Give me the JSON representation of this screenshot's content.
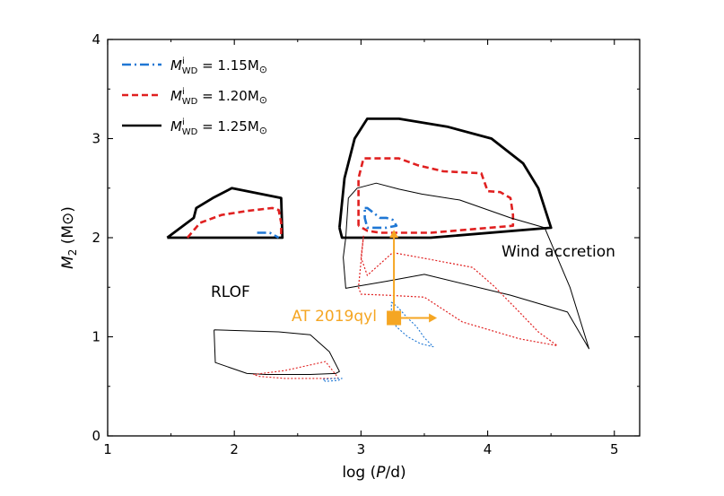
{
  "chart_data": {
    "type": "line",
    "xlabel": "log (P/d)",
    "ylabel": "M2 (M⊙)",
    "xlim": [
      1,
      5.2
    ],
    "ylim": [
      0,
      4
    ],
    "xticks": [
      "1",
      "2",
      "3",
      "4",
      "5"
    ],
    "yticks": [
      "0",
      "1",
      "2",
      "3",
      "4"
    ],
    "legend_position": "top-left",
    "legend": [
      {
        "label": "M_WD^i = 1.15M⊙",
        "color": "#1f77d4",
        "style": "dashdot"
      },
      {
        "label": "M_WD^i = 1.20M⊙",
        "color": "#e02020",
        "style": "dashed"
      },
      {
        "label": "M_WD^i = 1.25M⊙",
        "color": "#000000",
        "style": "solid"
      }
    ],
    "annotations": [
      "RLOF",
      "Wind accretion"
    ],
    "point": {
      "label": "AT 2019qyl",
      "x": 3.26,
      "y": 1.19,
      "color": "#f5a623",
      "arrow_up_to": 2.08,
      "arrow_right_to": 3.6
    },
    "series": [
      {
        "color": "#000000",
        "style": "solid",
        "width": 2.8,
        "points": [
          [
            1.47,
            2.0
          ],
          [
            1.73,
            2.0
          ],
          [
            2.38,
            2.0
          ],
          [
            2.37,
            2.4
          ],
          [
            1.98,
            2.5
          ],
          [
            1.83,
            2.4
          ],
          [
            1.7,
            2.3
          ],
          [
            1.68,
            2.2
          ],
          [
            1.47,
            2.0
          ]
        ]
      },
      {
        "color": "#e02020",
        "style": "dashed",
        "width": 2.6,
        "points": [
          [
            1.63,
            2.0
          ],
          [
            1.73,
            2.15
          ],
          [
            1.9,
            2.23
          ],
          [
            2.1,
            2.27
          ],
          [
            2.3,
            2.3
          ],
          [
            2.35,
            2.28
          ],
          [
            2.37,
            2.15
          ],
          [
            2.37,
            2.0
          ]
        ]
      },
      {
        "color": "#1f77d4",
        "style": "dashdot",
        "width": 2.6,
        "points": [
          [
            2.18,
            2.05
          ],
          [
            2.28,
            2.05
          ],
          [
            2.35,
            2.0
          ]
        ]
      },
      {
        "color": "#000000",
        "style": "solid",
        "width": 2.8,
        "points": [
          [
            2.83,
            2.1
          ],
          [
            2.87,
            2.6
          ],
          [
            2.95,
            3.0
          ],
          [
            3.05,
            3.2
          ],
          [
            3.3,
            3.2
          ],
          [
            3.68,
            3.12
          ],
          [
            4.03,
            3.0
          ],
          [
            4.28,
            2.75
          ],
          [
            4.4,
            2.5
          ],
          [
            4.5,
            2.1
          ],
          [
            3.55,
            2.0
          ],
          [
            2.85,
            2.0
          ],
          [
            2.83,
            2.1
          ]
        ]
      },
      {
        "color": "#e02020",
        "style": "dashed",
        "width": 2.6,
        "points": [
          [
            2.98,
            2.12
          ],
          [
            2.98,
            2.6
          ],
          [
            3.02,
            2.8
          ],
          [
            3.3,
            2.8
          ],
          [
            3.45,
            2.73
          ],
          [
            3.65,
            2.67
          ],
          [
            3.95,
            2.65
          ],
          [
            4.0,
            2.47
          ],
          [
            4.1,
            2.46
          ],
          [
            4.18,
            2.4
          ],
          [
            4.2,
            2.23
          ],
          [
            4.2,
            2.12
          ],
          [
            3.55,
            2.05
          ],
          [
            3.15,
            2.05
          ],
          [
            3.05,
            2.07
          ],
          [
            2.98,
            2.12
          ]
        ]
      },
      {
        "color": "#1f77d4",
        "style": "dashdot",
        "width": 2.6,
        "points": [
          [
            3.03,
            2.3
          ],
          [
            3.05,
            2.3
          ],
          [
            3.1,
            2.25
          ],
          [
            3.15,
            2.2
          ],
          [
            3.2,
            2.2
          ],
          [
            3.25,
            2.18
          ],
          [
            3.28,
            2.12
          ],
          [
            3.2,
            2.1
          ],
          [
            3.05,
            2.1
          ],
          [
            3.03,
            2.2
          ],
          [
            3.03,
            2.3
          ]
        ]
      },
      {
        "color": "#000000",
        "style": "solid",
        "width": 1.0,
        "points": [
          [
            2.88,
            2.0
          ],
          [
            2.9,
            2.4
          ],
          [
            2.97,
            2.5
          ],
          [
            3.12,
            2.55
          ],
          [
            3.3,
            2.49
          ],
          [
            3.48,
            2.44
          ],
          [
            3.78,
            2.38
          ],
          [
            4.18,
            2.2
          ],
          [
            4.45,
            2.1
          ],
          [
            4.65,
            1.5
          ],
          [
            4.8,
            0.88
          ],
          [
            4.63,
            1.25
          ],
          [
            4.18,
            1.42
          ],
          [
            3.5,
            1.63
          ],
          [
            3.2,
            1.56
          ],
          [
            2.88,
            1.49
          ],
          [
            2.86,
            1.8
          ],
          [
            2.88,
            2.0
          ]
        ]
      },
      {
        "color": "#e02020",
        "style": "dotted",
        "width": 1.2,
        "points": [
          [
            3.02,
            2.02
          ],
          [
            3.0,
            1.8
          ],
          [
            3.05,
            1.62
          ],
          [
            3.25,
            1.85
          ],
          [
            3.55,
            1.78
          ],
          [
            3.88,
            1.7
          ],
          [
            4.05,
            1.51
          ],
          [
            4.25,
            1.25
          ],
          [
            4.4,
            1.05
          ],
          [
            4.55,
            0.91
          ],
          [
            4.25,
            0.98
          ],
          [
            3.8,
            1.15
          ],
          [
            3.5,
            1.4
          ],
          [
            3.2,
            1.42
          ],
          [
            3.0,
            1.43
          ],
          [
            2.98,
            1.5
          ],
          [
            3.02,
            2.02
          ]
        ]
      },
      {
        "color": "#1f77d4",
        "style": "dotted",
        "width": 1.1,
        "points": [
          [
            3.24,
            1.35
          ],
          [
            3.29,
            1.3
          ],
          [
            3.36,
            1.2
          ],
          [
            3.44,
            1.1
          ],
          [
            3.5,
            0.99
          ],
          [
            3.57,
            0.9
          ],
          [
            3.47,
            0.93
          ],
          [
            3.37,
            1.0
          ],
          [
            3.28,
            1.1
          ],
          [
            3.24,
            1.2
          ],
          [
            3.24,
            1.35
          ]
        ]
      },
      {
        "color": "#000000",
        "style": "solid",
        "width": 1.0,
        "points": [
          [
            1.84,
            1.07
          ],
          [
            2.35,
            1.05
          ],
          [
            2.6,
            1.02
          ],
          [
            2.75,
            0.85
          ],
          [
            2.83,
            0.65
          ],
          [
            2.8,
            0.63
          ],
          [
            2.6,
            0.62
          ],
          [
            2.25,
            0.62
          ],
          [
            2.1,
            0.63
          ],
          [
            1.85,
            0.74
          ],
          [
            1.84,
            1.07
          ]
        ]
      },
      {
        "color": "#e02020",
        "style": "dotted",
        "width": 1.1,
        "points": [
          [
            2.15,
            0.62
          ],
          [
            2.4,
            0.66
          ],
          [
            2.58,
            0.71
          ],
          [
            2.72,
            0.75
          ],
          [
            2.8,
            0.62
          ],
          [
            2.82,
            0.58
          ],
          [
            2.7,
            0.58
          ],
          [
            2.4,
            0.58
          ],
          [
            2.2,
            0.6
          ],
          [
            2.15,
            0.62
          ]
        ]
      },
      {
        "color": "#1f77d4",
        "style": "dotted",
        "width": 1.1,
        "points": [
          [
            2.7,
            0.57
          ],
          [
            2.8,
            0.58
          ],
          [
            2.85,
            0.58
          ],
          [
            2.82,
            0.56
          ],
          [
            2.72,
            0.55
          ],
          [
            2.7,
            0.57
          ]
        ]
      }
    ]
  }
}
